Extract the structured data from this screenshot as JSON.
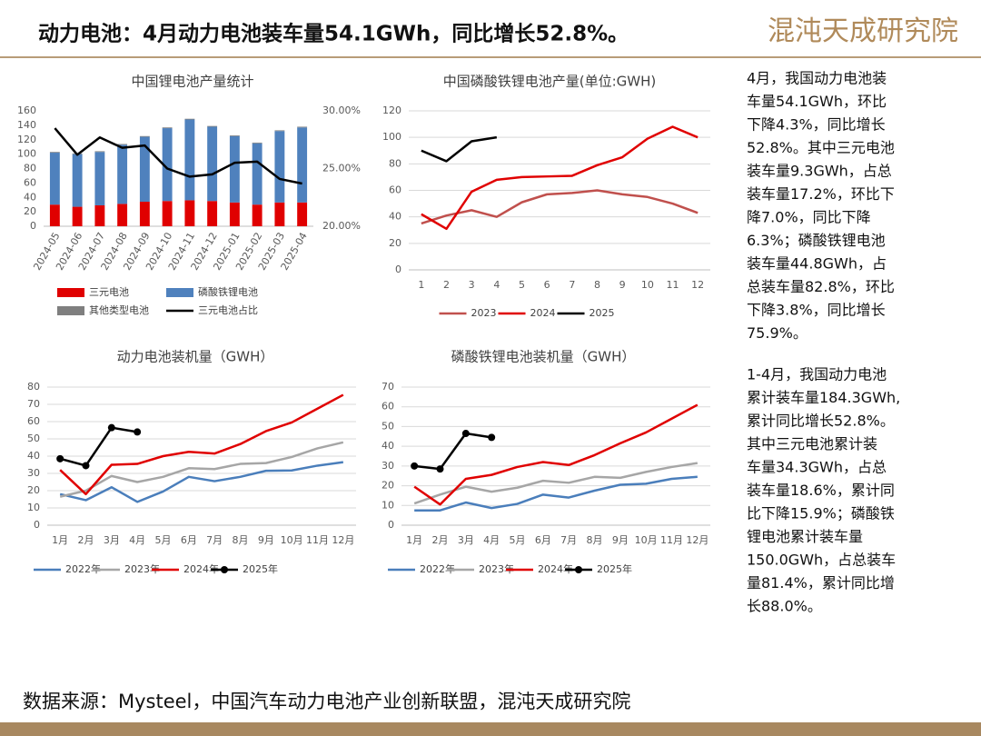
{
  "header": {
    "title": "动力电池：4月动力电池装车量54.1GWh，同比增长52.8%。",
    "logo": "混沌天成研究院"
  },
  "side_text": [
    [
      "4月，我国动力电池装",
      "车量54.1GWh，环比",
      "下降4.3%，同比增长",
      "52.8%。其中三元电池",
      "装车量9.3GWh，占总",
      "装车量17.2%，环比下",
      "降7.0%，同比下降",
      "6.3%；磷酸铁锂电池",
      "装车量44.8GWh，占",
      "总装车量82.8%，环比",
      "下降3.8%，同比增长",
      "75.9%。"
    ],
    [
      "1-4月，我国动力电池",
      "累计装车量184.3GWh,",
      "累计同比增长52.8%。",
      "其中三元电池累计装",
      "车量34.3GWh，占总",
      "装车量18.6%，累计同",
      "比下降15.9%；磷酸铁",
      "锂电池累计装车量",
      "150.0GWh，占总装车",
      "量81.4%，累计同比增",
      "长88.0%。"
    ]
  ],
  "source": "数据来源：Mysteel，中国汽车动力电池产业创新联盟，混沌天成研究院",
  "chart_data": [
    {
      "type": "bar",
      "title": "中国锂电池产量统计",
      "stacked": true,
      "grid": false,
      "categories": [
        "2024-05",
        "2024-06",
        "2024-07",
        "2024-08",
        "2024-09",
        "2024-10",
        "2024-11",
        "2024-12",
        "2025-01",
        "2025-02",
        "2025-03",
        "2025-04"
      ],
      "series": [
        {
          "name": "三元电池",
          "color": "#e00000",
          "values": [
            30,
            27,
            29,
            31,
            34,
            35,
            36,
            35,
            33,
            30,
            33,
            33
          ]
        },
        {
          "name": "磷酸铁锂电池",
          "color": "#4f81bd",
          "values": [
            72,
            73,
            74,
            82,
            90,
            101,
            112,
            103,
            92,
            85,
            99,
            104
          ]
        },
        {
          "name": "其他类型电池",
          "color": "#7f7f7f",
          "values": [
            1,
            1,
            1,
            1,
            1,
            1,
            1,
            1,
            1,
            1,
            1,
            1
          ]
        },
        {
          "name": "三元电池占比",
          "color": "#000000",
          "axis": "y2",
          "values": [
            28.5,
            26.2,
            27.7,
            26.8,
            27.0,
            25.0,
            24.3,
            24.5,
            25.5,
            25.6,
            24.1,
            23.7
          ]
        }
      ],
      "ylim": [
        0,
        160
      ],
      "yticks": [
        0,
        20,
        40,
        60,
        80,
        100,
        120,
        140,
        160
      ],
      "y2lim": [
        20,
        30
      ],
      "y2ticks": [
        {
          "value": 20,
          "label": "20.00%"
        },
        {
          "value": 25,
          "label": "25.00%"
        },
        {
          "value": 30,
          "label": "30.00%"
        }
      ]
    },
    {
      "type": "line",
      "title": "中国磷酸铁锂电池产量(单位:GWH)",
      "grid": true,
      "categories": [
        "1",
        "2",
        "3",
        "4",
        "5",
        "6",
        "7",
        "8",
        "9",
        "10",
        "11",
        "12"
      ],
      "series": [
        {
          "name": "2023",
          "color": "#c0504d",
          "values": [
            35,
            41,
            45,
            40,
            51,
            57,
            58,
            60,
            57,
            55,
            50,
            43
          ]
        },
        {
          "name": "2024",
          "color": "#e00000",
          "values": [
            42,
            31,
            59,
            68,
            70,
            70.5,
            71,
            79,
            85,
            99,
            108,
            100
          ]
        },
        {
          "name": "2025",
          "color": "#000000",
          "values": [
            90,
            82,
            97,
            100,
            null,
            null,
            null,
            null,
            null,
            null,
            null,
            null
          ]
        }
      ],
      "ylim": [
        0,
        120
      ],
      "yticks": [
        0,
        20,
        40,
        60,
        80,
        100,
        120
      ]
    },
    {
      "type": "line",
      "title": "动力电池装机量（GWH）",
      "grid": true,
      "categories": [
        "1月",
        "2月",
        "3月",
        "4月",
        "5月",
        "6月",
        "7月",
        "8月",
        "9月",
        "10月",
        "11月",
        "12月"
      ],
      "series": [
        {
          "name": "2022年",
          "color": "#4a7ebb",
          "values": [
            18,
            14.5,
            22,
            13.5,
            19.5,
            28,
            25.5,
            28,
            31.5,
            31.7,
            34.5,
            36.5
          ]
        },
        {
          "name": "2023年",
          "color": "#a6a6a6",
          "values": [
            16.5,
            20,
            28.5,
            25,
            28,
            33,
            32.5,
            35.5,
            36,
            39.5,
            44.5,
            48
          ]
        },
        {
          "name": "2024年",
          "color": "#e00000",
          "values": [
            32,
            18,
            35,
            35.5,
            40,
            42.5,
            41.5,
            47,
            54.5,
            59.5,
            67.5,
            75.5
          ]
        },
        {
          "name": "2025年",
          "color": "#000000",
          "markers": true,
          "values": [
            38.5,
            34.5,
            56.5,
            54,
            null,
            null,
            null,
            null,
            null,
            null,
            null,
            null
          ]
        }
      ],
      "ylim": [
        0,
        80
      ],
      "yticks": [
        0,
        10,
        20,
        30,
        40,
        50,
        60,
        70,
        80
      ]
    },
    {
      "type": "line",
      "title": "磷酸铁锂电池装机量（GWH）",
      "grid": true,
      "categories": [
        "1月",
        "2月",
        "3月",
        "4月",
        "5月",
        "6月",
        "7月",
        "8月",
        "9月",
        "10月",
        "11月",
        "12月"
      ],
      "series": [
        {
          "name": "2022年",
          "color": "#4a7ebb",
          "values": [
            7.5,
            7.5,
            11.5,
            8.7,
            10.8,
            15.5,
            14,
            17.5,
            20.5,
            21,
            23.5,
            24.5
          ]
        },
        {
          "name": "2023年",
          "color": "#a6a6a6",
          "values": [
            11,
            15.5,
            19.5,
            17,
            19,
            22.5,
            21.5,
            24.5,
            24,
            27,
            29.5,
            31.5
          ]
        },
        {
          "name": "2024年",
          "color": "#e00000",
          "values": [
            19.5,
            10.5,
            23.5,
            25.5,
            29.5,
            32,
            30.5,
            35.5,
            41.5,
            47,
            54,
            61
          ]
        },
        {
          "name": "2025年",
          "color": "#000000",
          "markers": true,
          "values": [
            30,
            28.5,
            46.5,
            44.5,
            null,
            null,
            null,
            null,
            null,
            null,
            null,
            null
          ]
        }
      ],
      "ylim": [
        0,
        70
      ],
      "yticks": [
        0,
        10,
        20,
        30,
        40,
        50,
        60,
        70
      ]
    }
  ]
}
